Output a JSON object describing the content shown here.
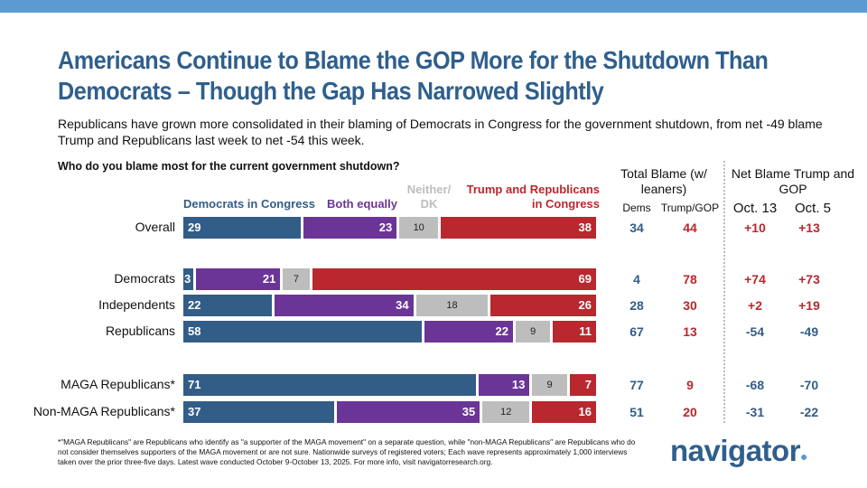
{
  "title": "Americans Continue to Blame the GOP More for the Shutdown Than Democrats – Though the Gap Has Narrowed Slightly",
  "subtitle": "Republicans have grown more consolidated in their blaming of Democrats in Congress for the government shutdown, from net -49 blame Trump and Republicans last week to net -54 this week.",
  "question": "Who do you blame most for the current government shutdown?",
  "headers": {
    "total": "Total Blame (w/ leaners)",
    "dems": "Dems",
    "trump": "Trump/GOP",
    "net": "Net Blame Trump and GOP",
    "oct13": "Oct. 13",
    "oct5": "Oct. 5"
  },
  "colors": {
    "dem": "#325d87",
    "both": "#6a3596",
    "neither": "#bdbdbd",
    "trump": "#b8282e",
    "title": "#2f5f8c"
  },
  "chart_data": {
    "type": "bar",
    "stacked": true,
    "orientation": "horizontal",
    "xlim": [
      0,
      100
    ],
    "series": [
      {
        "name": "Democrats in Congress"
      },
      {
        "name": "Both equally"
      },
      {
        "name": "Neither/ DK"
      },
      {
        "name": "Trump and Republicans in Congress"
      }
    ],
    "rows": [
      {
        "label": "Overall",
        "values": [
          29,
          23,
          10,
          38
        ],
        "total_dems": "34",
        "total_trump": "44",
        "net_oct13": "+10",
        "net_oct5": "+13"
      },
      {
        "label": "Democrats",
        "values": [
          3,
          21,
          7,
          69
        ],
        "total_dems": "4",
        "total_trump": "78",
        "net_oct13": "+74",
        "net_oct5": "+73"
      },
      {
        "label": "Independents",
        "values": [
          22,
          34,
          18,
          26
        ],
        "total_dems": "28",
        "total_trump": "30",
        "net_oct13": "+2",
        "net_oct5": "+19"
      },
      {
        "label": "Republicans",
        "values": [
          58,
          22,
          9,
          11
        ],
        "total_dems": "67",
        "total_trump": "13",
        "net_oct13": "-54",
        "net_oct5": "-49"
      },
      {
        "label": "MAGA Republicans*",
        "values": [
          71,
          13,
          9,
          7
        ],
        "total_dems": "77",
        "total_trump": "9",
        "net_oct13": "-68",
        "net_oct5": "-70"
      },
      {
        "label": "Non-MAGA Republicans*",
        "values": [
          37,
          35,
          12,
          16
        ],
        "total_dems": "51",
        "total_trump": "20",
        "net_oct13": "-31",
        "net_oct5": "-22"
      }
    ]
  },
  "footnote": "*\"MAGA Republicans\" are Republicans who identify as \"a supporter of the MAGA movement\" on a separate question, while \"non-MAGA Republicans\" are Republicans who do not consider themselves supporters of the MAGA movement or are not sure. Nationwide surveys of registered voters; Each wave represents approximately 1,000 interviews taken over the prior three-five days. Latest wave conducted October 9-October 13, 2025. For more info, visit navigatorresearch.org.",
  "logo": "navigator"
}
